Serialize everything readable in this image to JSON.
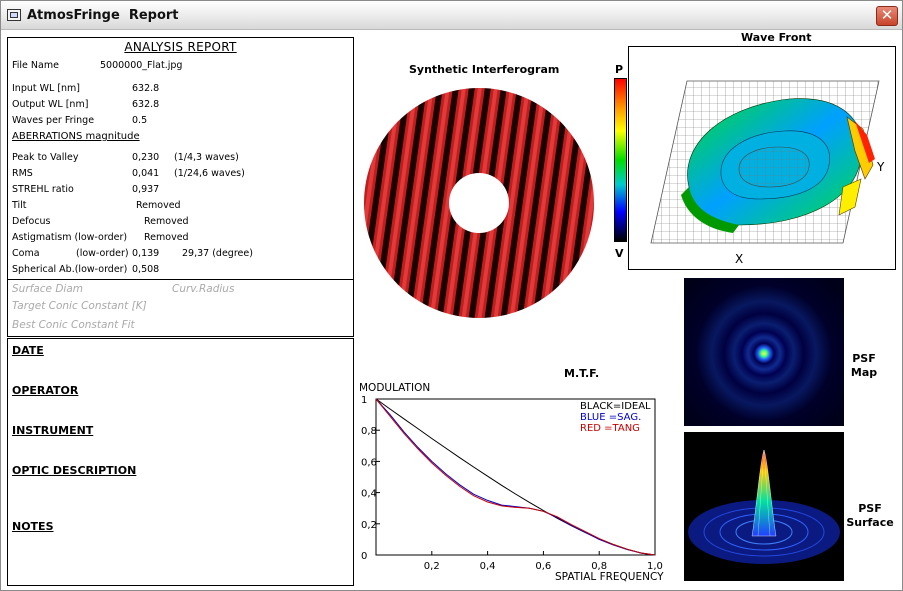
{
  "window": {
    "title": "AtmosFringe  Report"
  },
  "report": {
    "title": "ANALYSIS  REPORT",
    "file_name_label": "File Name",
    "file_name": "5000000_Flat.jpg",
    "input_wl_label": "Input  WL [nm]",
    "input_wl": "632.8",
    "output_wl_label": "Output WL [nm]",
    "output_wl": "632.8",
    "waves_label": "Waves per Fringe",
    "waves": "0.5",
    "aberrations_head": "ABERRATIONS magnitude",
    "p2v_label": "Peak to Valley",
    "p2v": "0,230",
    "p2v_note": "(1/4,3 waves)",
    "rms_label": "RMS",
    "rms": "0,041",
    "rms_note": "(1/24,6 waves)",
    "strehl_label": "STREHL ratio",
    "strehl": "0,937",
    "tilt_label": "Tilt",
    "tilt": "Removed",
    "defocus_label": "Defocus",
    "defocus": "Removed",
    "astig_label": "Astigmatism  (low-order)",
    "astig": "Removed",
    "coma_label": "Coma",
    "coma_order": "(low-order)",
    "coma": "0,139",
    "coma_angle": "29,37  (degree)",
    "spherical_label": "Spherical Ab.(low-order)",
    "spherical": "0,508"
  },
  "surface": {
    "diam_label": "Surface Diam",
    "curv_label": "Curv.Radius",
    "conic_label": "Target Conic Constant [K]",
    "best_fit_label": "Best Conic Constant Fit"
  },
  "info": {
    "date": "DATE",
    "operator": "OPERATOR",
    "instrument": "INSTRUMENT",
    "optic": "OPTIC DESCRIPTION",
    "notes": "NOTES"
  },
  "interferogram": {
    "title": "Synthetic Interferogram"
  },
  "wavefront": {
    "title": "Wave Front",
    "scale_top": "P",
    "scale_bottom": "V",
    "axis_x": "X",
    "axis_y": "Y"
  },
  "psf": {
    "map_label_1": "PSF",
    "map_label_2": "Map",
    "surface_label_1": "PSF",
    "surface_label_2": "Surface"
  },
  "mtf": {
    "title": "M.T.F.",
    "ylabel": "MODULATION",
    "xlabel": "SPATIAL FREQUENCY",
    "legend": {
      "black": "BLACK=IDEAL",
      "blue": "BLUE  =SAG.",
      "red": "RED    =TANG"
    },
    "colors": {
      "ideal": "#000000",
      "sag": "#0000c8",
      "tang": "#c80000"
    }
  },
  "chart_data": {
    "type": "line",
    "title": "M.T.F.",
    "xlabel": "SPATIAL FREQUENCY",
    "ylabel": "MODULATION",
    "xlim": [
      0,
      1.0
    ],
    "ylim": [
      0,
      1
    ],
    "x_ticks": [
      "0,2",
      "0,4",
      "0,6",
      "0,8",
      "1,0"
    ],
    "y_ticks": [
      "0",
      "0,2",
      "0,4",
      "0,6",
      "0,8",
      "1"
    ],
    "x": [
      0,
      0.05,
      0.1,
      0.15,
      0.2,
      0.25,
      0.3,
      0.35,
      0.4,
      0.45,
      0.5,
      0.55,
      0.6,
      0.65,
      0.7,
      0.75,
      0.8,
      0.85,
      0.9,
      0.95,
      1.0
    ],
    "series": [
      {
        "name": "BLACK=IDEAL",
        "values": [
          1.0,
          0.936,
          0.873,
          0.81,
          0.747,
          0.685,
          0.624,
          0.564,
          0.505,
          0.447,
          0.391,
          0.337,
          0.285,
          0.235,
          0.188,
          0.144,
          0.104,
          0.068,
          0.037,
          0.013,
          0.0
        ]
      },
      {
        "name": "BLUE  =SAG.",
        "values": [
          1.0,
          0.9,
          0.79,
          0.69,
          0.6,
          0.52,
          0.45,
          0.39,
          0.35,
          0.32,
          0.31,
          0.3,
          0.28,
          0.24,
          0.19,
          0.145,
          0.1,
          0.065,
          0.035,
          0.012,
          0.0
        ]
      },
      {
        "name": "RED    =TANG",
        "values": [
          1.0,
          0.89,
          0.78,
          0.68,
          0.59,
          0.51,
          0.44,
          0.38,
          0.34,
          0.315,
          0.305,
          0.3,
          0.28,
          0.245,
          0.195,
          0.15,
          0.105,
          0.068,
          0.037,
          0.013,
          0.0
        ]
      }
    ]
  }
}
